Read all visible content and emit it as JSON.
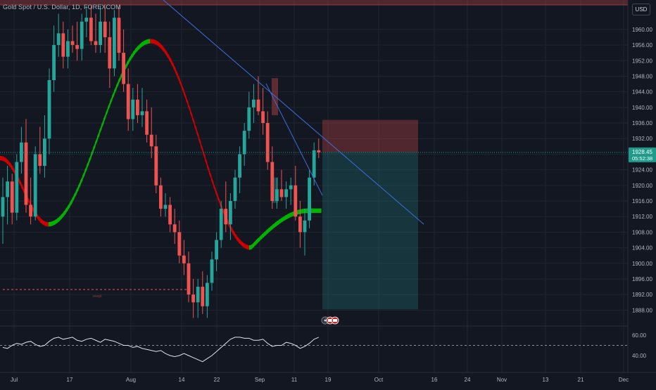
{
  "header": {
    "title": "Gold Spot / U.S. Dollar, 1D, FOREXCOM",
    "currency_button": "USD"
  },
  "price_axis": {
    "ticks": [
      "1960.00",
      "1956.00",
      "1952.00",
      "1948.00",
      "1944.00",
      "1940.00",
      "1936.00",
      "1932.00",
      "1928.00",
      "1924.00",
      "1920.00",
      "1916.00",
      "1912.00",
      "1908.00",
      "1904.00",
      "1900.00",
      "1896.00",
      "1892.00",
      "1888.00"
    ],
    "current_price": "1928.45",
    "countdown": "05:52:38"
  },
  "indicator_axis": {
    "ticks": [
      "60.00",
      "40.00"
    ]
  },
  "time_axis": {
    "ticks": [
      "Jul",
      "17",
      "Aug",
      "14",
      "22",
      "Sep",
      "11",
      "19",
      "Oct",
      "16",
      "24",
      "Nov",
      "13",
      "21",
      "Dec"
    ]
  },
  "annotations": {
    "marker_text": "swept"
  },
  "colors": {
    "background": "#131722",
    "up": "#26a69a",
    "down": "#ef5350",
    "ma_up": "#00b300",
    "ma_down": "#cc0000",
    "trendline": "#2962ff",
    "price_label": "#1e9b8a"
  },
  "chart_data": {
    "type": "candlestick",
    "x_range": [
      "Jul",
      "Dec"
    ],
    "y_range": [
      1886,
      1966
    ],
    "current_price": 1928.45,
    "position": {
      "type": "short",
      "entry": 1928.5,
      "stop": 1936.8,
      "target": 1888.2
    },
    "oscillator_levels": [
      60,
      50,
      40
    ],
    "moving_average": {
      "turns_green_near": 1910,
      "peak_near": 1957,
      "trough_near": 1904
    },
    "candles": [
      [
        1912.0,
        1922.0,
        1905.0,
        1917.0
      ],
      [
        1917.0,
        1925.0,
        1910.0,
        1921.0
      ],
      [
        1921.0,
        1923.0,
        1910.0,
        1913.0
      ],
      [
        1913.0,
        1928.0,
        1911.0,
        1926.0
      ],
      [
        1926.0,
        1935.0,
        1923.0,
        1931.0
      ],
      [
        1931.0,
        1937.0,
        1913.0,
        1915.0
      ],
      [
        1915.0,
        1922.0,
        1910.0,
        1912.0
      ],
      [
        1912.0,
        1930.0,
        1911.0,
        1928.0
      ],
      [
        1928.0,
        1935.0,
        1923.0,
        1925.0
      ],
      [
        1925.0,
        1938.0,
        1922.0,
        1932.0
      ],
      [
        1932.0,
        1950.0,
        1928.0,
        1947.0
      ],
      [
        1947.0,
        1961.0,
        1944.0,
        1956.0
      ],
      [
        1956.0,
        1964.0,
        1953.0,
        1959.0
      ],
      [
        1959.0,
        1962.0,
        1950.0,
        1953.0
      ],
      [
        1953.0,
        1960.0,
        1950.0,
        1957.0
      ],
      [
        1957.0,
        1961.0,
        1954.0,
        1956.0
      ],
      [
        1956.0,
        1962.0,
        1952.0,
        1955.0
      ],
      [
        1955.0,
        1964.0,
        1952.0,
        1962.0
      ],
      [
        1962.0,
        1966.0,
        1958.0,
        1963.0
      ],
      [
        1963.0,
        1966.0,
        1956.0,
        1957.0
      ],
      [
        1957.0,
        1964.0,
        1954.0,
        1956.0
      ],
      [
        1956.0,
        1966.0,
        1954.0,
        1962.0
      ],
      [
        1962.0,
        1966.0,
        1954.0,
        1958.0
      ],
      [
        1958.0,
        1962.0,
        1945.0,
        1950.0
      ],
      [
        1950.0,
        1965.0,
        1948.0,
        1963.0
      ],
      [
        1963.0,
        1966.0,
        1952.0,
        1954.0
      ],
      [
        1954.0,
        1960.0,
        1944.0,
        1946.0
      ],
      [
        1946.0,
        1950.0,
        1934.0,
        1937.0
      ],
      [
        1937.0,
        1945.0,
        1934.0,
        1942.0
      ],
      [
        1942.0,
        1946.0,
        1936.0,
        1938.0
      ],
      [
        1938.0,
        1945.0,
        1935.0,
        1939.0
      ],
      [
        1939.0,
        1942.0,
        1931.0,
        1933.0
      ],
      [
        1933.0,
        1940.0,
        1927.0,
        1930.0
      ],
      [
        1930.0,
        1933.0,
        1918.0,
        1920.0
      ],
      [
        1920.0,
        1922.0,
        1912.0,
        1914.0
      ],
      [
        1914.0,
        1918.0,
        1912.0,
        1915.0
      ],
      [
        1915.0,
        1917.0,
        1908.0,
        1910.0
      ],
      [
        1910.0,
        1914.0,
        1905.0,
        1908.0
      ],
      [
        1908.0,
        1911.0,
        1900.0,
        1902.0
      ],
      [
        1902.0,
        1906.0,
        1897.0,
        1900.0
      ],
      [
        1900.0,
        1903.0,
        1890.0,
        1892.0
      ],
      [
        1892.0,
        1896.0,
        1886.0,
        1890.0
      ],
      [
        1890.0,
        1896.0,
        1886.0,
        1894.0
      ],
      [
        1894.0,
        1898.0,
        1887.0,
        1889.0
      ],
      [
        1889.0,
        1897.0,
        1886.0,
        1895.0
      ],
      [
        1895.0,
        1903.0,
        1893.0,
        1901.0
      ],
      [
        1901.0,
        1908.0,
        1898.0,
        1906.0
      ],
      [
        1906.0,
        1916.0,
        1904.0,
        1914.0
      ],
      [
        1914.0,
        1921.0,
        1908.0,
        1910.0
      ],
      [
        1910.0,
        1918.0,
        1906.0,
        1916.0
      ],
      [
        1916.0,
        1924.0,
        1914.0,
        1922.0
      ],
      [
        1922.0,
        1930.0,
        1918.0,
        1928.0
      ],
      [
        1928.0,
        1936.0,
        1925.0,
        1934.0
      ],
      [
        1934.0,
        1944.0,
        1932.0,
        1940.0
      ],
      [
        1940.0,
        1946.0,
        1936.0,
        1942.0
      ],
      [
        1942.0,
        1948.0,
        1938.0,
        1939.0
      ],
      [
        1939.0,
        1945.0,
        1933.0,
        1936.0
      ],
      [
        1936.0,
        1939.0,
        1924.0,
        1926.0
      ],
      [
        1926.0,
        1930.0,
        1914.0,
        1916.0
      ],
      [
        1916.0,
        1922.0,
        1914.0,
        1919.0
      ],
      [
        1919.0,
        1924.0,
        1916.0,
        1917.0
      ],
      [
        1917.0,
        1921.0,
        1914.0,
        1919.0
      ],
      [
        1919.0,
        1922.0,
        1915.0,
        1920.0
      ],
      [
        1920.0,
        1925.0,
        1911.0,
        1912.0
      ],
      [
        1912.0,
        1916.0,
        1904.0,
        1908.0
      ],
      [
        1908.0,
        1914.0,
        1902.0,
        1911.0
      ],
      [
        1911.0,
        1924.0,
        1909.0,
        1922.0
      ],
      [
        1922.0,
        1931.0,
        1920.0,
        1929.0
      ],
      [
        1929.0,
        1932.0,
        1927.0,
        1928.45
      ]
    ],
    "oscillator": [
      48,
      47,
      50,
      52,
      51,
      53,
      54,
      51,
      49,
      50,
      54,
      57,
      58,
      56,
      57,
      58,
      55,
      54,
      56,
      57,
      55,
      53,
      56,
      55,
      54,
      52,
      50,
      50,
      48,
      49,
      47,
      46,
      45,
      44,
      45,
      42,
      40,
      39,
      40,
      42,
      40,
      38,
      36,
      34,
      37,
      40,
      44,
      48,
      52,
      56,
      58,
      58,
      57,
      57,
      55,
      55,
      56,
      52,
      49,
      50,
      50,
      53,
      52,
      50,
      47,
      49,
      52,
      56,
      58
    ]
  }
}
